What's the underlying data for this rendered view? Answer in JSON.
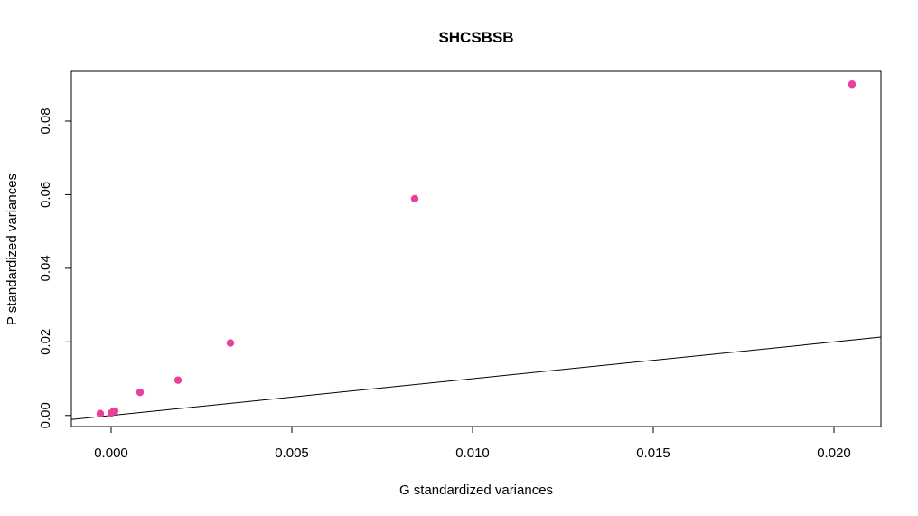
{
  "chart_data": {
    "type": "scatter",
    "title": "SHCSBSB",
    "xlabel": "G standardized variances",
    "ylabel": "P standardized variances",
    "xlim": [
      -0.0011,
      0.0213
    ],
    "ylim": [
      -0.003,
      0.0935
    ],
    "xticks": [
      0.0,
      0.005,
      0.01,
      0.015,
      0.02
    ],
    "xtick_labels": [
      "0.000",
      "0.005",
      "0.010",
      "0.015",
      "0.020"
    ],
    "yticks": [
      0.0,
      0.02,
      0.04,
      0.06,
      0.08
    ],
    "ytick_labels": [
      "0.00",
      "0.02",
      "0.04",
      "0.06",
      "0.08"
    ],
    "grid": false,
    "point_color": "#E8409E",
    "points": [
      {
        "x": -0.0003,
        "y": 0.0005
      },
      {
        "x": 0.0,
        "y": 0.0006
      },
      {
        "x": 5e-05,
        "y": 0.001
      },
      {
        "x": 0.0001,
        "y": 0.0012
      },
      {
        "x": 0.0008,
        "y": 0.0063
      },
      {
        "x": 0.00185,
        "y": 0.0096
      },
      {
        "x": 0.0033,
        "y": 0.0197
      },
      {
        "x": 0.0084,
        "y": 0.0589
      },
      {
        "x": 0.0205,
        "y": 0.09
      }
    ],
    "reference_line": {
      "intercept": 0,
      "slope": 1
    }
  }
}
